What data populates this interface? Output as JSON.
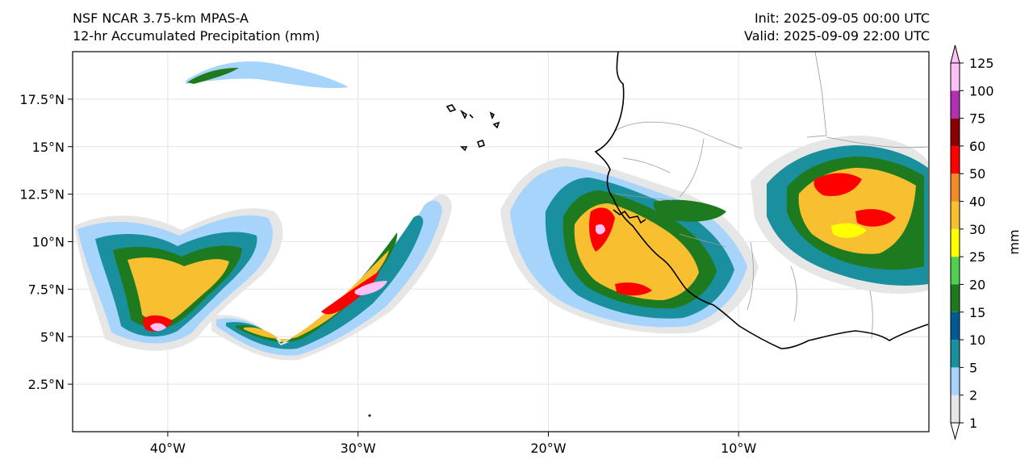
{
  "header": {
    "model_name": "NSF NCAR 3.75-km MPAS-A",
    "product": "12-hr Accumulated Precipitation (mm)",
    "init_label": "Init: 2025-09-05 00:00 UTC",
    "valid_label": "Valid: 2025-09-09 22:00 UTC"
  },
  "map": {
    "lon_range": [
      -45,
      0
    ],
    "lat_range": [
      0,
      20
    ],
    "lat_ticks": [
      {
        "value": 2.5,
        "label": "2.5°N"
      },
      {
        "value": 5,
        "label": "5°N"
      },
      {
        "value": 7.5,
        "label": "7.5°N"
      },
      {
        "value": 10,
        "label": "10°N"
      },
      {
        "value": 12.5,
        "label": "12.5°N"
      },
      {
        "value": 15,
        "label": "15°N"
      },
      {
        "value": 17.5,
        "label": "17.5°N"
      }
    ],
    "lon_ticks": [
      {
        "value": -40,
        "label": "40°W"
      },
      {
        "value": -30,
        "label": "30°W"
      },
      {
        "value": -20,
        "label": "20°W"
      },
      {
        "value": -10,
        "label": "10°W"
      }
    ],
    "gridlines": true
  },
  "colorbar": {
    "unit_label": "mm",
    "levels": [
      "1",
      "2",
      "5",
      "10",
      "15",
      "20",
      "25",
      "30",
      "40",
      "50",
      "60",
      "75",
      "100",
      "125"
    ],
    "colors": [
      "#e6e6e6",
      "#a6d4fa",
      "#1a8f9e",
      "#005a96",
      "#1e7a1e",
      "#50d050",
      "#ffff00",
      "#f8c030",
      "#f08c28",
      "#ff0000",
      "#8b0000",
      "#b030b0",
      "#ffc0f8"
    ],
    "extend": "both"
  }
}
